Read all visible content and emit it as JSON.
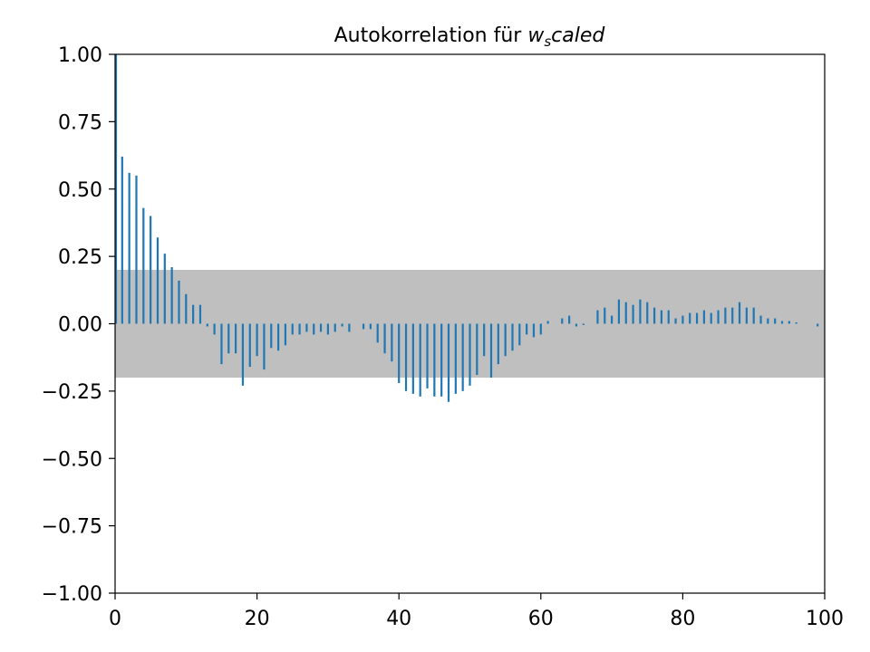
{
  "chart_data": {
    "type": "bar",
    "title": "Autokorrelation für ",
    "title_italic": "w",
    "title_subscript": "s",
    "title_italic_suffix": "caled",
    "xlabel": "",
    "ylabel": "",
    "xlim": [
      0,
      100
    ],
    "ylim": [
      -1.0,
      1.0
    ],
    "xticks": [
      0,
      20,
      40,
      60,
      80,
      100
    ],
    "xtick_labels": [
      "0",
      "20",
      "40",
      "60",
      "80",
      "100"
    ],
    "yticks": [
      -1.0,
      -0.75,
      -0.5,
      -0.25,
      0.0,
      0.25,
      0.5,
      0.75,
      1.0
    ],
    "ytick_labels": [
      "−1.00",
      "−0.75",
      "−0.50",
      "−0.25",
      "0.00",
      "0.25",
      "0.50",
      "0.75",
      "1.00"
    ],
    "confidence_band": [
      -0.2,
      0.2
    ],
    "colors": {
      "bar": "#1f77b4",
      "band": "#bfbfbf"
    },
    "x": [
      0,
      1,
      2,
      3,
      4,
      5,
      6,
      7,
      8,
      9,
      10,
      11,
      12,
      13,
      14,
      15,
      16,
      17,
      18,
      19,
      20,
      21,
      22,
      23,
      24,
      25,
      26,
      27,
      28,
      29,
      30,
      31,
      32,
      33,
      34,
      35,
      36,
      37,
      38,
      39,
      40,
      41,
      42,
      43,
      44,
      45,
      46,
      47,
      48,
      49,
      50,
      51,
      52,
      53,
      54,
      55,
      56,
      57,
      58,
      59,
      60,
      61,
      62,
      63,
      64,
      65,
      66,
      67,
      68,
      69,
      70,
      71,
      72,
      73,
      74,
      75,
      76,
      77,
      78,
      79,
      80,
      81,
      82,
      83,
      84,
      85,
      86,
      87,
      88,
      89,
      90,
      91,
      92,
      93,
      94,
      95,
      96,
      97,
      98,
      99
    ],
    "values": [
      1.0,
      0.62,
      0.56,
      0.55,
      0.43,
      0.4,
      0.32,
      0.26,
      0.21,
      0.16,
      0.11,
      0.07,
      0.07,
      -0.01,
      -0.04,
      -0.15,
      -0.11,
      -0.11,
      -0.23,
      -0.16,
      -0.12,
      -0.17,
      -0.09,
      -0.1,
      -0.08,
      -0.04,
      -0.04,
      -0.03,
      -0.04,
      -0.03,
      -0.04,
      -0.03,
      -0.01,
      -0.03,
      0.0,
      -0.02,
      -0.02,
      -0.07,
      -0.11,
      -0.14,
      -0.22,
      -0.25,
      -0.26,
      -0.27,
      -0.24,
      -0.27,
      -0.27,
      -0.29,
      -0.26,
      -0.25,
      -0.23,
      -0.19,
      -0.12,
      -0.2,
      -0.15,
      -0.12,
      -0.1,
      -0.08,
      -0.04,
      -0.05,
      -0.04,
      0.01,
      0.0,
      0.02,
      0.03,
      -0.01,
      -0.005,
      0.0,
      0.05,
      0.06,
      0.03,
      0.09,
      0.08,
      0.07,
      0.09,
      0.08,
      0.06,
      0.05,
      0.05,
      0.02,
      0.03,
      0.04,
      0.04,
      0.05,
      0.04,
      0.05,
      0.06,
      0.06,
      0.08,
      0.06,
      0.06,
      0.03,
      0.02,
      0.02,
      0.01,
      0.01,
      0.005,
      0.0,
      0.0,
      -0.01
    ]
  }
}
